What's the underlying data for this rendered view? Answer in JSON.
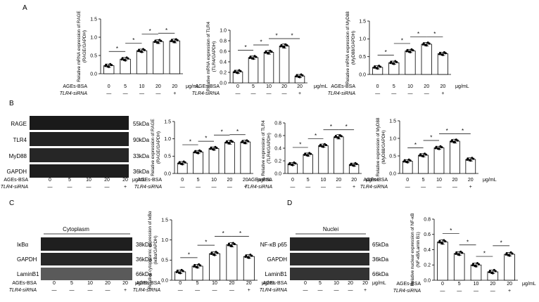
{
  "panel_letters": [
    "A",
    "B",
    "C",
    "D"
  ],
  "treatment": {
    "ages_label": "AGEs-BSA",
    "ages_values": [
      "0",
      "5",
      "10",
      "20",
      "20"
    ],
    "sirna_label": "TLR4-siRNA",
    "sirna_values": [
      "—",
      "—",
      "—",
      "—",
      "+"
    ],
    "unit": "μg/mL"
  },
  "blots": {
    "B": {
      "rows": [
        {
          "name": "RAGE",
          "size": "55kDa"
        },
        {
          "name": "TLR4",
          "size": "90kDa"
        },
        {
          "name": "MyD88",
          "size": "33kDa"
        },
        {
          "name": "GAPDH",
          "size": "36kDa"
        }
      ]
    },
    "C": {
      "header": "Cytoplasm",
      "rows": [
        {
          "name": "IκBα",
          "size": "38kDa"
        },
        {
          "name": "GAPDH",
          "size": "36kDa"
        },
        {
          "name": "LaminB1",
          "size": "66kDa"
        }
      ]
    },
    "D": {
      "header": "Nuclei",
      "rows": [
        {
          "name": "NF-κB p65",
          "size": "65kDa"
        },
        {
          "name": "GAPDH",
          "size": "36kDa"
        },
        {
          "name": "LaminB1",
          "size": "66kDa"
        }
      ]
    }
  },
  "chart_data": [
    {
      "id": "A1",
      "type": "bar",
      "categories": [
        "0",
        "5",
        "10",
        "20",
        "20"
      ],
      "values": [
        0.22,
        0.4,
        0.63,
        0.88,
        0.9
      ],
      "ylabel_lines": [
        "Relative mRNA expression of RAGE",
        "(RAGE/GAPDH)"
      ],
      "yticks": [
        "0.0",
        "0.5",
        "1.0",
        "1.5"
      ],
      "ylim": [
        0,
        1.5
      ]
    },
    {
      "id": "A2",
      "type": "bar",
      "categories": [
        "0",
        "5",
        "10",
        "20",
        "20"
      ],
      "values": [
        0.21,
        0.48,
        0.58,
        0.7,
        0.13
      ],
      "ylabel_lines": [
        "Relative mRNA expression of TLR4",
        "(TLR4/GAPDH)"
      ],
      "yticks": [
        "0.0",
        "0.2",
        "0.4",
        "0.6",
        "0.8",
        "1.0"
      ],
      "ylim": [
        0,
        1.0
      ]
    },
    {
      "id": "A3",
      "type": "bar",
      "categories": [
        "0",
        "5",
        "10",
        "20",
        "20"
      ],
      "values": [
        0.2,
        0.33,
        0.66,
        0.85,
        0.58
      ],
      "ylabel_lines": [
        "Relative mRNA expression of MyD88",
        "(MyD88/GAPDH)"
      ],
      "yticks": [
        "0.0",
        "0.5",
        "1.0",
        "1.5"
      ],
      "ylim": [
        0,
        1.5
      ]
    },
    {
      "id": "B1",
      "type": "bar",
      "categories": [
        "0",
        "5",
        "10",
        "20",
        "20"
      ],
      "values": [
        0.3,
        0.62,
        0.72,
        0.9,
        0.91
      ],
      "ylabel_lines": [
        "Relative expression of RAGE",
        "(RAGE/GAPDH)"
      ],
      "yticks": [
        "0.0",
        "0.5",
        "1.0",
        "1.5"
      ],
      "ylim": [
        0,
        1.5
      ]
    },
    {
      "id": "B2",
      "type": "bar",
      "categories": [
        "0",
        "5",
        "10",
        "20",
        "20"
      ],
      "values": [
        0.15,
        0.3,
        0.44,
        0.58,
        0.14
      ],
      "ylabel_lines": [
        "Relative expression of TLR4",
        "(TLR4/GAPDH)"
      ],
      "yticks": [
        "0.0",
        "0.2",
        "0.4",
        "0.6",
        "0.8"
      ],
      "ylim": [
        0,
        0.8
      ]
    },
    {
      "id": "B3",
      "type": "bar",
      "categories": [
        "0",
        "5",
        "10",
        "20",
        "20"
      ],
      "values": [
        0.35,
        0.52,
        0.73,
        0.92,
        0.4
      ],
      "ylabel_lines": [
        "Relative expression of MyD88",
        "(MyD88/GAPDH)"
      ],
      "yticks": [
        "0.0",
        "0.5",
        "1.0",
        "1.5"
      ],
      "ylim": [
        0,
        1.5
      ]
    },
    {
      "id": "C1",
      "type": "bar",
      "categories": [
        "0",
        "5",
        "10",
        "20",
        "20"
      ],
      "values": [
        0.21,
        0.35,
        0.66,
        0.88,
        0.59
      ],
      "ylabel_lines": [
        "Relative cytoplasmic expression of IκBα",
        "(IκBα/GAPDH)"
      ],
      "yticks": [
        "0.0",
        "0.5",
        "1.0",
        "1.5"
      ],
      "ylim": [
        0,
        1.5
      ]
    },
    {
      "id": "D1",
      "type": "bar",
      "categories": [
        "0",
        "5",
        "10",
        "20",
        "20"
      ],
      "values": [
        0.5,
        0.35,
        0.2,
        0.11,
        0.34
      ],
      "ylabel_lines": [
        "Relative nuclear expression of NF-κB",
        "(NF-κB/Lamin B1)"
      ],
      "yticks": [
        "0.0",
        "0.2",
        "0.4",
        "0.6",
        "0.8"
      ],
      "ylim": [
        0,
        0.8
      ]
    }
  ]
}
